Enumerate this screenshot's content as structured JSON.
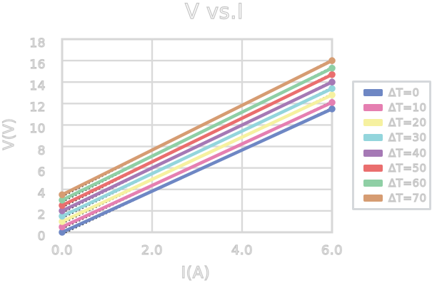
{
  "title": "V vs.I",
  "axes": {
    "x_label": "I(A)",
    "y_label": "V(V)",
    "x_ticks": [
      "0.0",
      "2.0",
      "4.0",
      "6.0"
    ],
    "y_ticks": [
      "0",
      "2",
      "4",
      "6",
      "8",
      "10",
      "12",
      "14",
      "16",
      "18"
    ]
  },
  "legend": {
    "position": "right",
    "entries": [
      "ΔT=0",
      "ΔT=10",
      "ΔT=20",
      "ΔT=30",
      "ΔT=40",
      "ΔT=50",
      "ΔT=60",
      "ΔT=70"
    ]
  },
  "colors": {
    "gridline": "#d9d9d9",
    "frame": "#d7d7d7",
    "trendline": "#2a2a2a",
    "text_fill": "#fdfdfd",
    "text_outline": "#c6c6c6",
    "legend_border": "#d5d8db",
    "background": "#ffffff"
  },
  "chart_data": {
    "type": "line",
    "title": "V vs.I",
    "xlabel": "I(A)",
    "ylabel": "V(V)",
    "xlim": [
      0,
      6
    ],
    "ylim": [
      0,
      18
    ],
    "grid": true,
    "legend_position": "right",
    "marker": "circle",
    "trendline_style": "dashed-black",
    "x": [
      0,
      6
    ],
    "series": [
      {
        "name": "ΔT=0",
        "color": "#6e87c4",
        "values": [
          0.0,
          11.5
        ]
      },
      {
        "name": "ΔT=10",
        "color": "#e57fb1",
        "values": [
          0.5,
          12.1
        ]
      },
      {
        "name": "ΔT=20",
        "color": "#f6f1a0",
        "values": [
          1.0,
          12.8
        ]
      },
      {
        "name": "ΔT=30",
        "color": "#93d5dc",
        "values": [
          1.5,
          13.4
        ]
      },
      {
        "name": "ΔT=40",
        "color": "#a579b5",
        "values": [
          2.0,
          14.0
        ]
      },
      {
        "name": "ΔT=50",
        "color": "#ea6e6e",
        "values": [
          2.5,
          14.7
        ]
      },
      {
        "name": "ΔT=60",
        "color": "#8fcfa5",
        "values": [
          3.0,
          15.3
        ]
      },
      {
        "name": "ΔT=70",
        "color": "#d69c72",
        "values": [
          3.5,
          16.0
        ]
      }
    ]
  }
}
